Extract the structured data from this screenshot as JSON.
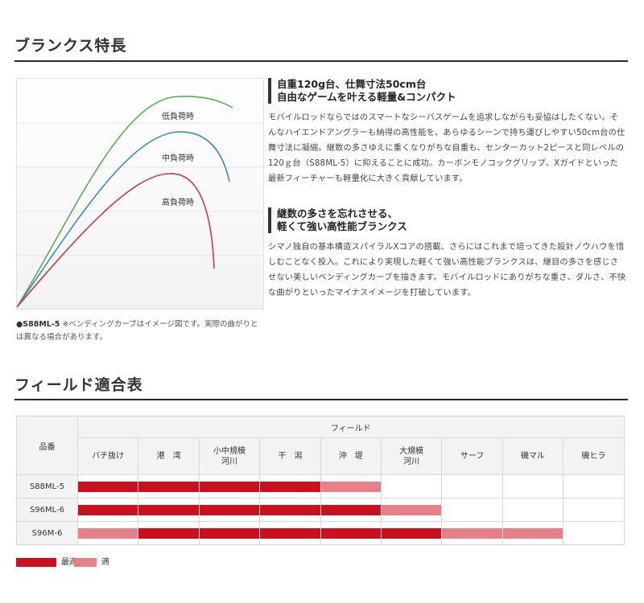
{
  "section1": {
    "title": "ブランクス特長"
  },
  "curve": {
    "labels": {
      "low": "低負荷時",
      "mid": "中負荷時",
      "high": "高負荷時"
    },
    "colors": {
      "low": "#5aad5a",
      "mid": "#3a8fb0",
      "high": "#cc3a48"
    }
  },
  "note": {
    "model": "●S88ML-5",
    "text": " ※ベンディングカーブはイメージ図です。実際の曲がりとは異なる場合があります。"
  },
  "feature1": {
    "title_line1": "自重120g台、仕舞寸法50cm台",
    "title_line2": "自由なゲームを叶える軽量&コンパクト",
    "body": "モバイルロッドならではのスマートなシーバスゲームを追求しながらも妥協はしたくない。そんなハイエンドアングラーも納得の高性能を、あらゆるシーンで持ち運びしやすい50cm台の仕舞寸法に凝縮。継数の多さゆえに重くなりがちな自重も、センターカット2ピースと同レベルの120ｇ台（S88ML-5）に抑えることに成功。カーボンモノコックグリップ、Xガイドといった最新フィーチャーも軽量化に大きく貢献しています。"
  },
  "feature2": {
    "title_line1": "継数の多さを忘れさせる、",
    "title_line2": "軽くて強い高性能ブランクス",
    "body": "シマノ独自の基本構造スパイラルXコアの搭載、さらにはこれまで培ってきた設計ノウハウを惜しむことなく投入。これにより実現した軽くて強い高性能ブランクスは、継目の多さを感じさせない美しいベンディングカーブを描きます。モバイルロッドにありがちな重さ、ダルさ、不快な曲がりといったマイナスイメージを打破しています。"
  },
  "section2": {
    "title": "フィールド適合表"
  },
  "table": {
    "col_header": "品番",
    "group_header": "フィールド",
    "fields": [
      "バチ抜け",
      "港　湾",
      "小中規模\n河川",
      "干　潟",
      "沖　堤",
      "大規模\n河川",
      "サーフ",
      "磯マル",
      "磯ヒラ"
    ],
    "rows": [
      {
        "model": "S88ML-5",
        "levels": [
          2,
          2,
          2,
          2,
          1,
          0,
          0,
          0,
          0
        ]
      },
      {
        "model": "S96ML-6",
        "levels": [
          2,
          2,
          2,
          2,
          2,
          1,
          0,
          0,
          0
        ]
      },
      {
        "model": "S96M-6",
        "levels": [
          1,
          2,
          2,
          2,
          2,
          2,
          1,
          1,
          0
        ]
      }
    ],
    "colors": {
      "best": "#cc1020",
      "good": "#e8808a"
    }
  },
  "legend": {
    "best_label": "最適",
    "good_label": "適"
  }
}
